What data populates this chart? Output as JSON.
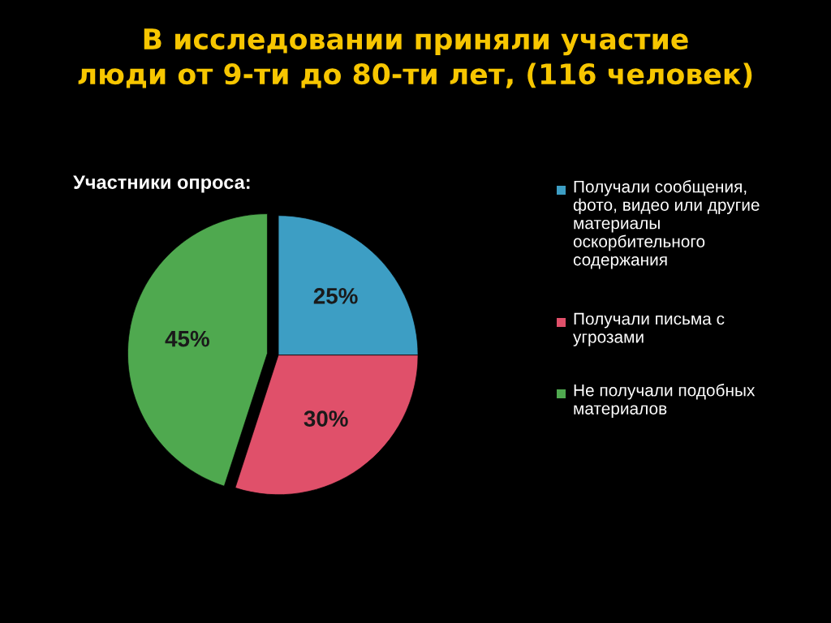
{
  "chart_data": {
    "type": "pie",
    "title": "В исследовании приняли участие\nлюди от 9-ти до 80-ти лет, (116 человек)",
    "subtitle": "Участники опроса:",
    "categories": [
      "Получали сообщения,\nфото, видео или другие\nматериалы\nоскорбительного\nсодержания",
      "Получали письма с\nугрозами",
      "Не получали подобных\nматериалов"
    ],
    "values": [
      25,
      30,
      45
    ],
    "colors": [
      "#3d9ec4",
      "#e0506a",
      "#4fa94f"
    ],
    "value_labels": [
      "25%",
      "30%",
      "45%"
    ],
    "legend": "right"
  }
}
